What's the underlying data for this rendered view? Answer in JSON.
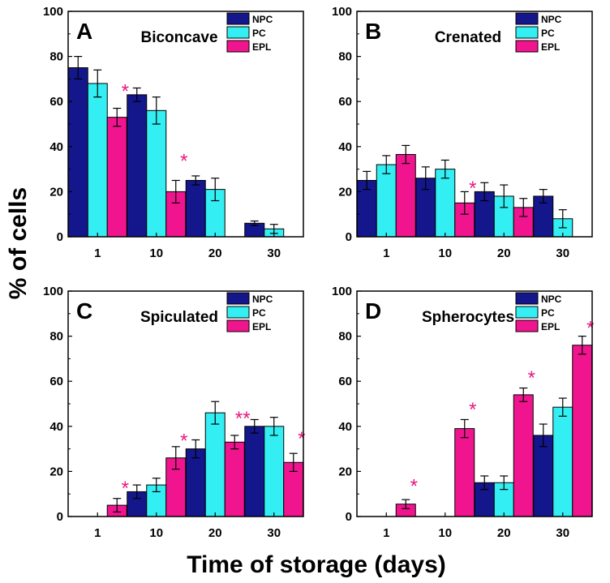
{
  "figure": {
    "ylabel": "% of cells",
    "xlabel": "Time of storage (days)"
  },
  "colors": {
    "NPC": "#14168c",
    "PC": "#33eef2",
    "EPL": "#f0158f",
    "star": "#e8177f"
  },
  "chart_data": [
    {
      "type": "bar",
      "letter": "A",
      "title": "Biconcave",
      "categories": [
        "1",
        "10",
        "20",
        "30"
      ],
      "ylim": [
        0,
        100
      ],
      "yticks": [
        0,
        20,
        40,
        60,
        80,
        100
      ],
      "legend": [
        "NPC",
        "PC",
        "EPL"
      ],
      "series": [
        {
          "name": "NPC",
          "values": [
            75,
            63,
            25,
            6
          ],
          "errors": [
            5,
            3,
            2,
            1
          ]
        },
        {
          "name": "PC",
          "values": [
            68,
            56,
            21,
            3.5
          ],
          "errors": [
            6,
            6,
            5,
            2
          ]
        },
        {
          "name": "EPL",
          "values": [
            53,
            20,
            null,
            null
          ],
          "errors": [
            4,
            5,
            null,
            null
          ]
        }
      ],
      "marks": [
        {
          "category": 0,
          "series": 2,
          "y": 66,
          "text": "*"
        },
        {
          "category": 1,
          "series": 2,
          "y": 35,
          "text": "*"
        }
      ]
    },
    {
      "type": "bar",
      "letter": "B",
      "title": "Crenated",
      "categories": [
        "1",
        "10",
        "20",
        "30"
      ],
      "ylim": [
        0,
        100
      ],
      "yticks": [
        0,
        20,
        40,
        60,
        80,
        100
      ],
      "legend": [
        "NPC",
        "PC",
        "EPL"
      ],
      "series": [
        {
          "name": "NPC",
          "values": [
            25,
            26,
            20,
            18
          ],
          "errors": [
            4,
            5,
            4,
            3
          ]
        },
        {
          "name": "PC",
          "values": [
            32,
            30,
            18,
            8
          ],
          "errors": [
            4,
            4,
            5,
            4
          ]
        },
        {
          "name": "EPL",
          "values": [
            36.5,
            15,
            13,
            null
          ],
          "errors": [
            4,
            5,
            4,
            null
          ]
        }
      ],
      "marks": [
        {
          "category": 1,
          "series": 2,
          "y": 23,
          "text": "*"
        }
      ]
    },
    {
      "type": "bar",
      "letter": "C",
      "title": "Spiculated",
      "categories": [
        "1",
        "10",
        "20",
        "30"
      ],
      "ylim": [
        0,
        100
      ],
      "yticks": [
        0,
        20,
        40,
        60,
        80,
        100
      ],
      "legend": [
        "NPC",
        "PC",
        "EPL"
      ],
      "series": [
        {
          "name": "NPC",
          "values": [
            null,
            11,
            30,
            40
          ],
          "errors": [
            null,
            3,
            4,
            3
          ]
        },
        {
          "name": "PC",
          "values": [
            null,
            14,
            46,
            40
          ],
          "errors": [
            null,
            3,
            5,
            4
          ]
        },
        {
          "name": "EPL",
          "values": [
            5,
            26,
            33,
            24
          ],
          "errors": [
            3,
            5,
            3,
            4
          ]
        }
      ],
      "marks": [
        {
          "category": 0,
          "series": 2,
          "y": 14,
          "text": "*"
        },
        {
          "category": 1,
          "series": 2,
          "y": 35,
          "text": "*"
        },
        {
          "category": 2,
          "series": 2,
          "y": 45,
          "text": "**"
        },
        {
          "category": 3,
          "series": 2,
          "y": 36,
          "text": "*"
        }
      ]
    },
    {
      "type": "bar",
      "letter": "D",
      "title": "Spherocytes",
      "categories": [
        "1",
        "10",
        "20",
        "30"
      ],
      "ylim": [
        0,
        100
      ],
      "yticks": [
        0,
        20,
        40,
        60,
        80,
        100
      ],
      "legend": [
        "NPC",
        "PC",
        "EPL"
      ],
      "series": [
        {
          "name": "NPC",
          "values": [
            null,
            null,
            15,
            36
          ],
          "errors": [
            null,
            null,
            3,
            5
          ]
        },
        {
          "name": "PC",
          "values": [
            null,
            null,
            15,
            48.5
          ],
          "errors": [
            null,
            null,
            3,
            4
          ]
        },
        {
          "name": "EPL",
          "values": [
            5.5,
            39,
            54,
            76
          ],
          "errors": [
            2,
            4,
            3,
            4
          ]
        }
      ],
      "marks": [
        {
          "category": 0,
          "series": 2,
          "y": 15,
          "text": "*"
        },
        {
          "category": 1,
          "series": 2,
          "y": 49,
          "text": "*"
        },
        {
          "category": 2,
          "series": 2,
          "y": 63,
          "text": "*"
        },
        {
          "category": 3,
          "series": 2,
          "y": 85,
          "text": "*"
        }
      ]
    }
  ]
}
